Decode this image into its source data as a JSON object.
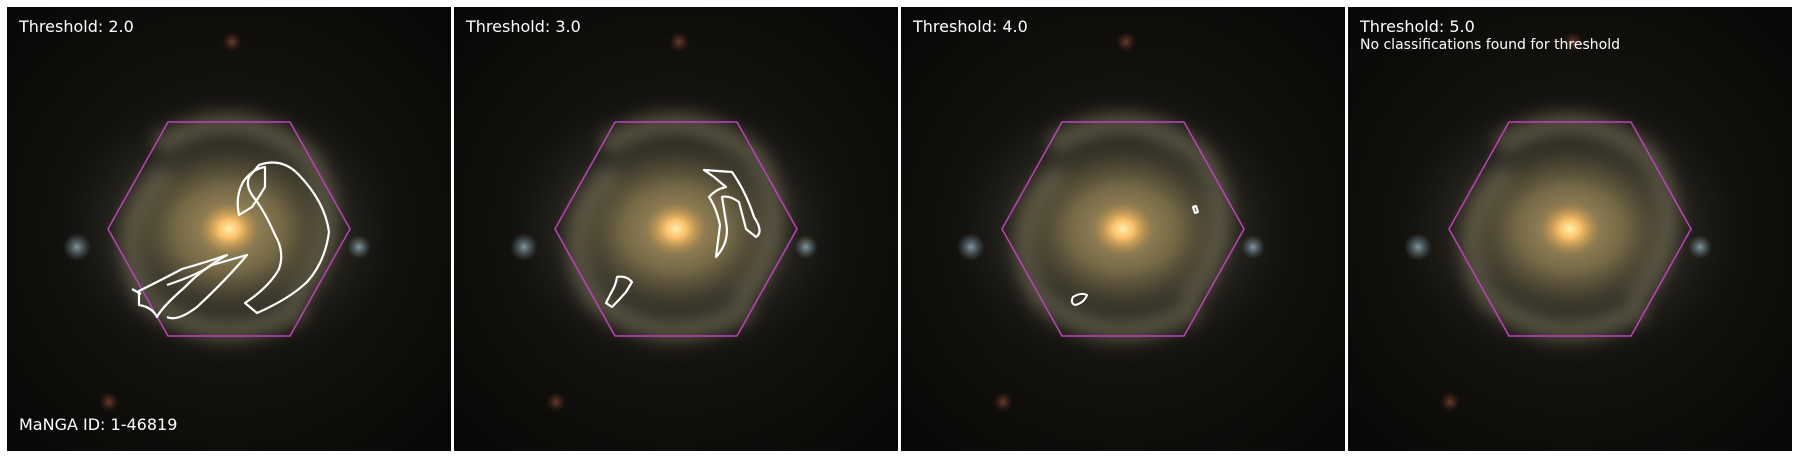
{
  "panels": [
    {
      "threshold_label": "Threshold: 2.0",
      "note": "",
      "footer": "MaNGA ID: 1-46819"
    },
    {
      "threshold_label": "Threshold: 3.0",
      "note": "",
      "footer": ""
    },
    {
      "threshold_label": "Threshold: 4.0",
      "note": "",
      "footer": ""
    },
    {
      "threshold_label": "Threshold: 5.0",
      "note": "No classifications found for threshold",
      "footer": ""
    }
  ],
  "colors": {
    "background": "#0b0a08",
    "galaxy_core": "#ffd07a",
    "galaxy_disk": "#8a7a4e",
    "ifu_hexagon": "#c040c0",
    "contour": "#ffffff",
    "label_text": "#ffffff"
  }
}
